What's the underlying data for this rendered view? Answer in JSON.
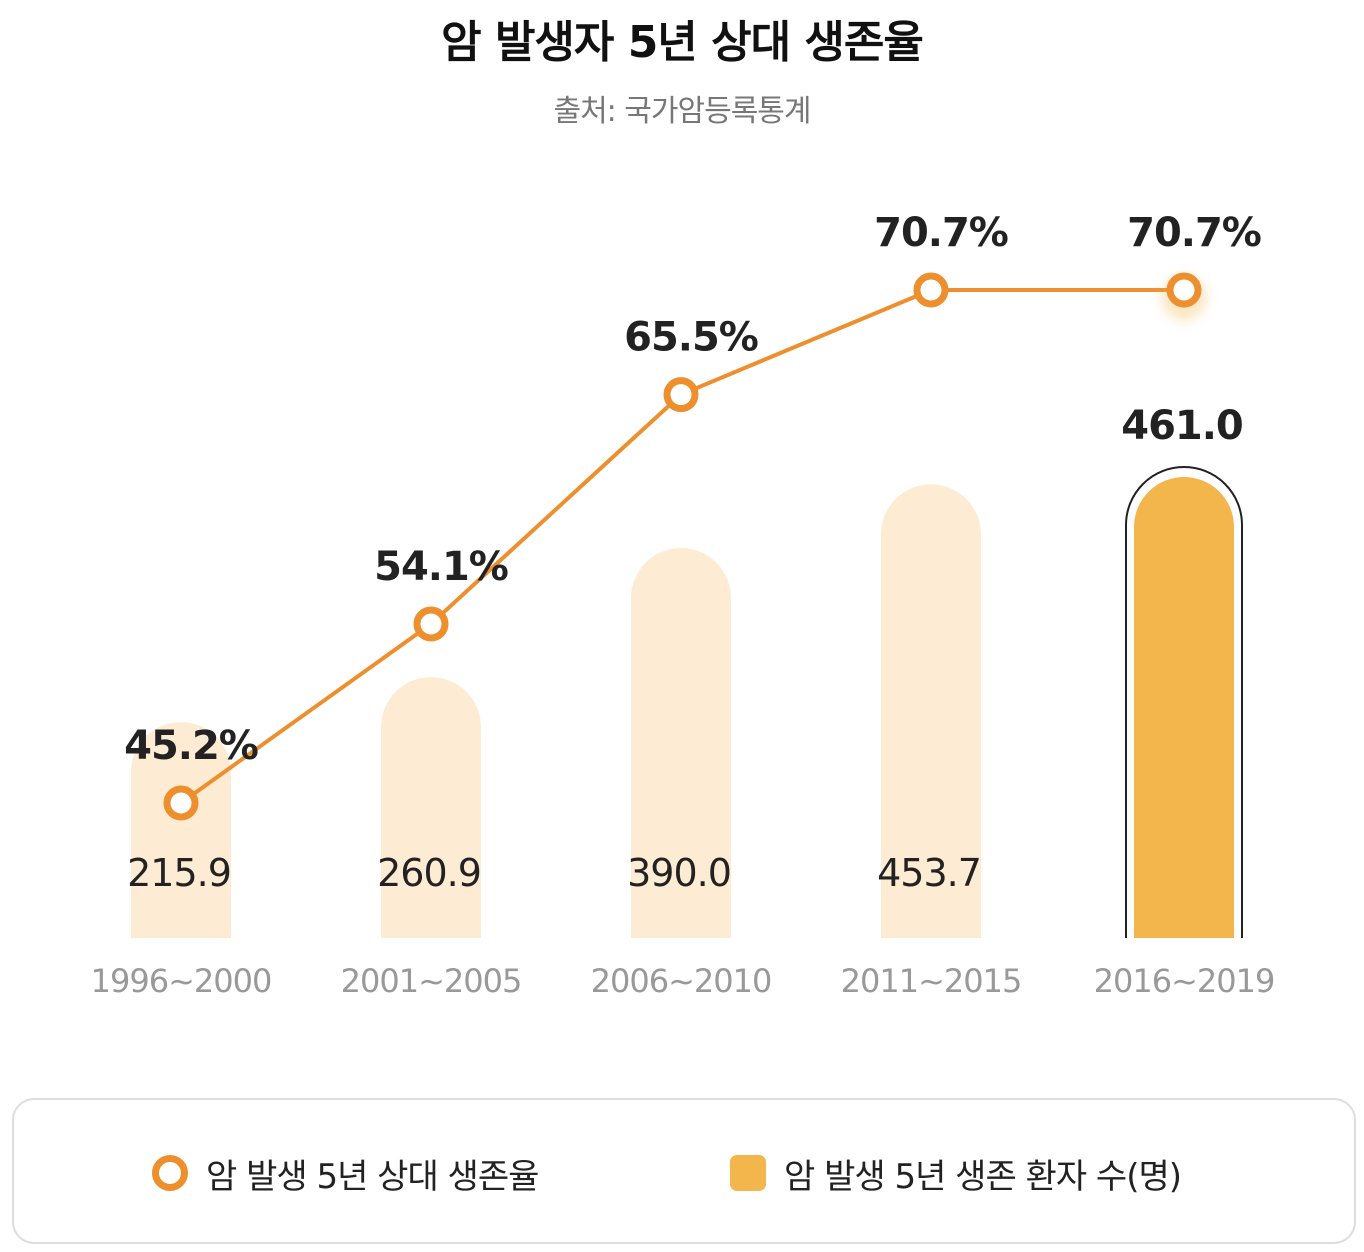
{
  "chart_data": {
    "type": "bar",
    "title": "암 발생자 5년 상대 생존율",
    "subtitle": "출처: 국가암등록통계",
    "categories": [
      "1996~2000",
      "2001~2005",
      "2006~2010",
      "2011~2015",
      "2016~2019"
    ],
    "series": [
      {
        "name": "암 발생 5년 생존 환자 수(명)",
        "type": "bar",
        "values": [
          215.9,
          260.9,
          390.0,
          453.7,
          461.0
        ],
        "labels": [
          "215.9",
          "260.9",
          "390.0",
          "453.7",
          "461.0"
        ],
        "highlight_index": 4
      },
      {
        "name": "암 발생 5년 상대 생존율",
        "type": "line",
        "values": [
          45.2,
          54.1,
          65.5,
          70.7,
          70.7
        ],
        "labels": [
          "45.2%",
          "54.1%",
          "65.5%",
          "70.7%",
          "70.7%"
        ]
      }
    ],
    "bar_axis": [
      0,
      500
    ],
    "line_axis": [
      30,
      80
    ],
    "grid": false,
    "legend_position": "bottom"
  },
  "colors": {
    "bar": "#fdecd3",
    "bar_highlight": "#f3b64c",
    "line": "#ee8f2e",
    "axis_label": "#999999",
    "value_text": "#222222"
  }
}
